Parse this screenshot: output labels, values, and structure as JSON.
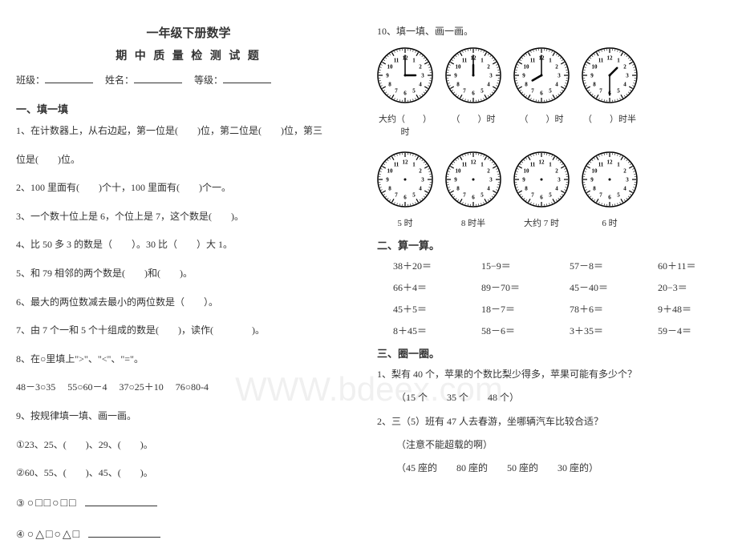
{
  "title": "一年级下册数学",
  "subtitle": "期 中 质 量 检 测 试 题",
  "info": {
    "class": "班级：",
    "name": "姓名：",
    "grade": "等级："
  },
  "s1": {
    "head": "一、填一填",
    "q1": "1、在计数器上，从右边起，第一位是(　　)位，第二位是(　　)位，第三",
    "q1b": "位是(　　)位。",
    "q2": "2、100 里面有(　　)个十，100 里面有(　　)个一。",
    "q3": "3、一个数十位上是 6，个位上是 7，这个数是(　　)。",
    "q4": "4、比 50 多 3 的数是（　　）。30 比（　　）大 1。",
    "q5": "5、和 79 相邻的两个数是(　　)和(　　)。",
    "q6": "6、最大的两位数减去最小的两位数是（　　）。",
    "q7": "7、由 7 个一和 5 个十组成的数是(　　)，读作(　　　　)。",
    "q8": "8、在○里填上\">\"、\"<\"、\"=\"。",
    "q8row": [
      "48－3○35",
      "55○60－4",
      "37○25＋10",
      "76○80-4"
    ],
    "q9": "9、按规律填一填、画一画。",
    "q9a": "①23、25、(　　)、29、(　　)。",
    "q9b": "②60、55、(　　)、45、(　　)。",
    "q9c": "③",
    "q9c_shapes": "○□□○□□",
    "q9d": "④",
    "q9d_shapes": "○△□○△□"
  },
  "q10head": "10、填一填、画一画。",
  "clocks_row1": [
    {
      "hour": 3,
      "min": 0,
      "label": "大约（　　）时"
    },
    {
      "hour": 12,
      "min": 0,
      "label": "（　　）时"
    },
    {
      "hour": 8,
      "min": 0,
      "label": "（　　）时"
    },
    {
      "hour": 1,
      "min": 30,
      "label": "（　　）时半"
    }
  ],
  "clocks_row2": [
    {
      "label": "5 时"
    },
    {
      "label": "8 时半"
    },
    {
      "label": "大约 7 时"
    },
    {
      "label": "6 时"
    }
  ],
  "s2": {
    "head": "二、算一算。",
    "rows": [
      [
        "38＋20＝",
        "15−9＝",
        "57－8＝",
        "60＋11＝"
      ],
      [
        "66＋4＝",
        "89－70＝",
        "45－40＝",
        "20−3＝"
      ],
      [
        "45＋5＝",
        "18－7＝",
        "78＋6＝",
        "9＋48＝"
      ],
      [
        "8＋45＝",
        "58－6＝",
        "3＋35＝",
        "59－4＝"
      ]
    ]
  },
  "s3": {
    "head": "三、圈一圈。",
    "q1": "1、梨有 40 个，苹果的个数比梨少得多，苹果可能有多少个？",
    "q1opts": "（15 个　　35 个　　48 个）",
    "q2": "2、三（5）班有 47 人去春游，坐哪辆汽车比较合适？",
    "q2note": "（注意不能超载的啊）",
    "q2opts": "（45 座的　　80 座的　　50 座的　　30 座的）"
  },
  "watermark": "WWW.bdeex.com",
  "clock_style": {
    "size": 70,
    "face_fill": "#fff",
    "face_stroke": "#000",
    "tick_color": "#000",
    "hand_color": "#000",
    "num_font": 7
  }
}
